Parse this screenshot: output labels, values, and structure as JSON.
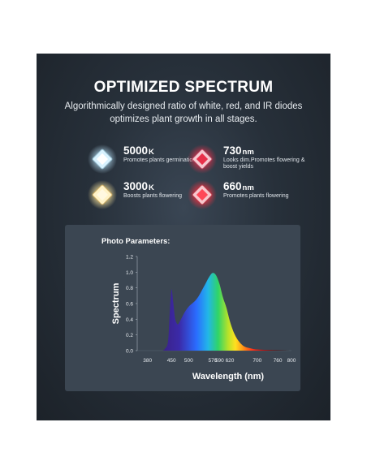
{
  "header": {
    "title": "OPTIMIZED SPECTRUM",
    "subtitle_line1": "Algorithmically designed ratio of white, red, and IR diodes",
    "subtitle_line2": "optimizes plant growth in all stages."
  },
  "features": [
    {
      "value": "5000",
      "unit": "K",
      "desc": "Promotes plants germination",
      "color": "#bfe8ff"
    },
    {
      "value": "730",
      "unit": "nm",
      "desc": "Looks dim.Promotes flowering & boost yields",
      "color": "#e8304a"
    },
    {
      "value": "3000",
      "unit": "K",
      "desc": "Boosts plants flowering",
      "color": "#ffe9a0"
    },
    {
      "value": "660",
      "unit": "nm",
      "desc": "Promotes plants flowering",
      "color": "#ff3040"
    }
  ],
  "chart_data": {
    "type": "area",
    "title": "Photo Parameters:",
    "xlabel": "Wavelength (nm)",
    "ylabel": "Spectrum",
    "xlim": [
      350,
      800
    ],
    "ylim": [
      0,
      1.2
    ],
    "x_ticks": [
      "380",
      "450",
      "500",
      "570",
      "590",
      "620",
      "700",
      "760",
      "800"
    ],
    "y_ticks": [
      "0.0",
      "0.2",
      "0.4",
      "0.6",
      "0.8",
      "1.0",
      "1.2"
    ],
    "x": [
      380,
      400,
      420,
      430,
      440,
      445,
      450,
      455,
      460,
      465,
      470,
      480,
      490,
      500,
      510,
      520,
      530,
      540,
      550,
      560,
      570,
      580,
      590,
      600,
      610,
      620,
      630,
      640,
      650,
      660,
      670,
      680,
      690,
      700,
      720,
      740,
      760,
      780,
      800
    ],
    "values": [
      0.0,
      0.0,
      0.0,
      0.02,
      0.12,
      0.5,
      0.78,
      0.62,
      0.42,
      0.35,
      0.34,
      0.42,
      0.5,
      0.56,
      0.6,
      0.64,
      0.7,
      0.78,
      0.86,
      0.94,
      0.99,
      0.96,
      0.85,
      0.68,
      0.55,
      0.38,
      0.25,
      0.16,
      0.1,
      0.06,
      0.04,
      0.03,
      0.02,
      0.015,
      0.01,
      0.008,
      0.005,
      0.003,
      0.0
    ],
    "grid": false,
    "legend": "none"
  }
}
